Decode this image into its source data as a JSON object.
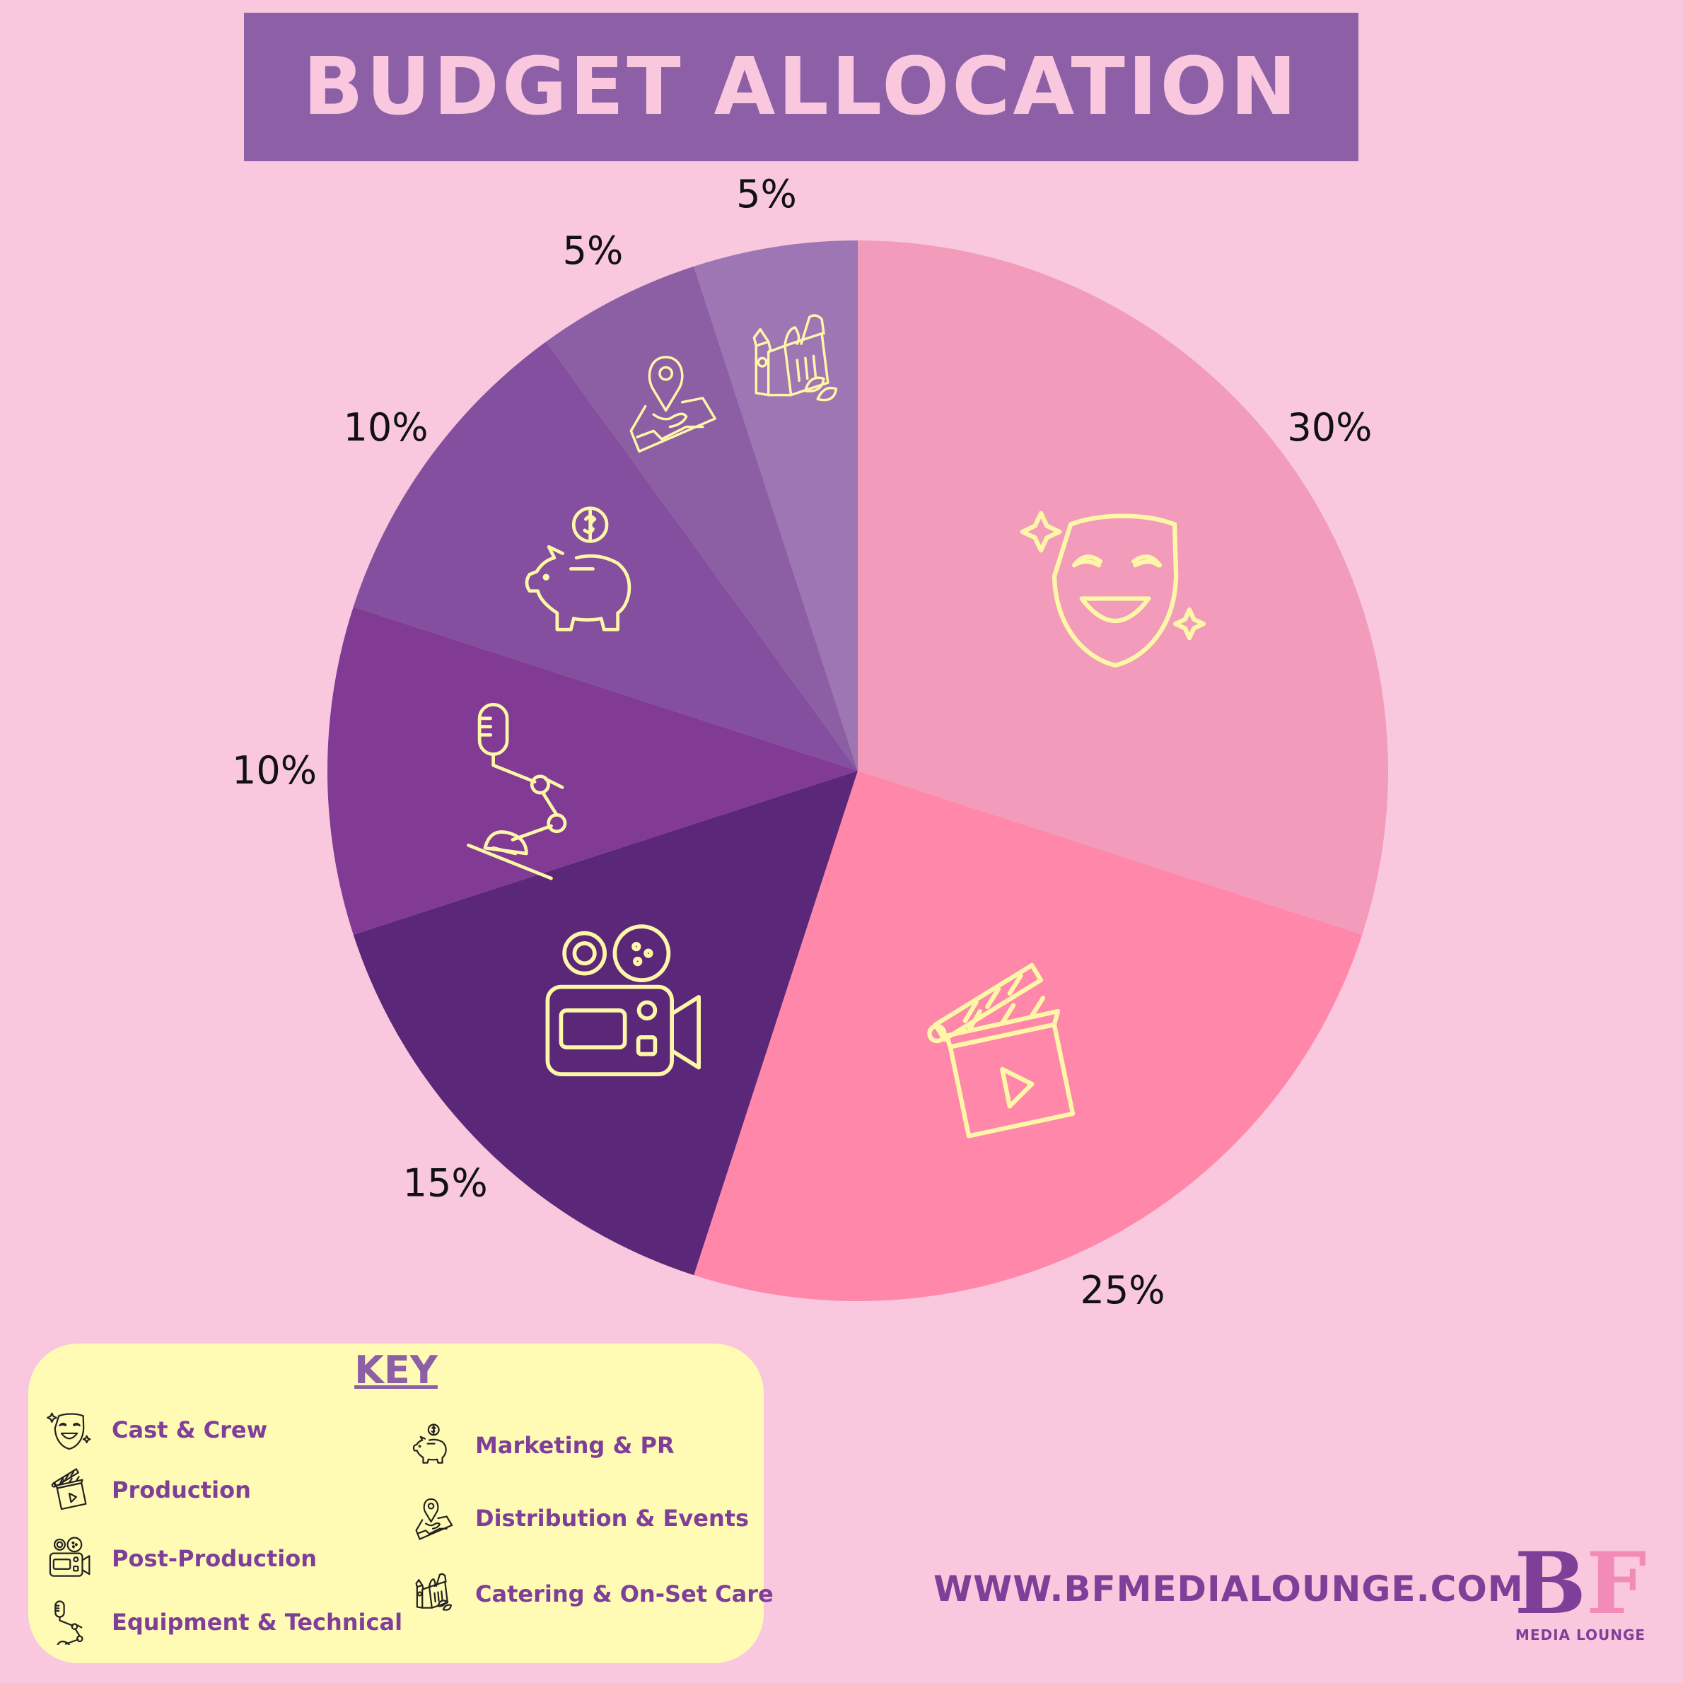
{
  "title": "BUDGET ALLOCATION",
  "chart_data": {
    "type": "pie",
    "categories": [
      "Cast & Crew",
      "Production",
      "Post-Production",
      "Equipment & Technical",
      "Marketing & PR",
      "Distribution & Events",
      "Catering & On-Set Care"
    ],
    "values": [
      30,
      25,
      15,
      10,
      10,
      5,
      5
    ],
    "labels": [
      "30%",
      "25%",
      "15%",
      "10%",
      "10%",
      "5%",
      "5%"
    ],
    "colors": [
      "#f29bbb",
      "#ff88aa",
      "#5b2778",
      "#813b94",
      "#844f9e",
      "#8c5fa5",
      "#9e76b4"
    ],
    "icons": [
      "theater-mask-icon",
      "clapperboard-icon",
      "movie-camera-icon",
      "microphone-stand-icon",
      "piggy-bank-icon",
      "map-pin-icon",
      "grocery-bag-icon"
    ],
    "legend": "bottom-left"
  },
  "key": {
    "title": "KEY",
    "items": [
      {
        "label": "Cast & Crew",
        "icon": "theater-mask-icon"
      },
      {
        "label": "Production",
        "icon": "clapperboard-icon"
      },
      {
        "label": "Post-Production",
        "icon": "movie-camera-icon"
      },
      {
        "label": "Equipment & Technical",
        "icon": "microphone-stand-icon"
      },
      {
        "label": "Marketing & PR",
        "icon": "piggy-bank-icon"
      },
      {
        "label": "Distribution & Events",
        "icon": "map-pin-icon"
      },
      {
        "label": "Catering & On-Set Care",
        "icon": "grocery-bag-icon"
      }
    ]
  },
  "website": "WWW.BFMEDIALOUNGE.COM",
  "logo": {
    "mark_b": "B",
    "mark_f": "F",
    "subtitle": "MEDIA LOUNGE"
  },
  "colors": {
    "background": "#f9c8de",
    "banner": "#8d5fa6",
    "accent_text": "#7f3f98",
    "icon_line": "#fff7a8",
    "key_box": "#fffbb4"
  }
}
